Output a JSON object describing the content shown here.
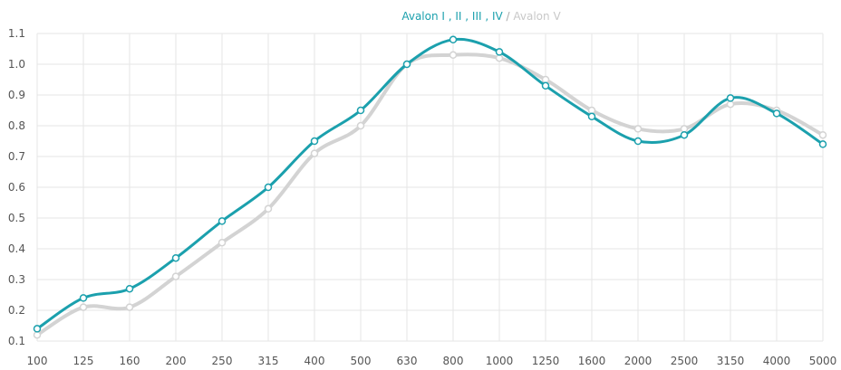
{
  "chart_data": {
    "type": "line",
    "categories": [
      "100",
      "125",
      "160",
      "200",
      "250",
      "315",
      "400",
      "500",
      "630",
      "800",
      "1000",
      "1250",
      "1600",
      "2000",
      "2500",
      "3150",
      "4000",
      "5000"
    ],
    "ylim": [
      0.1,
      1.1
    ],
    "yticks": [
      "0.1",
      "0.2",
      "0.3",
      "0.4",
      "0.5",
      "0.6",
      "0.7",
      "0.8",
      "0.9",
      "1.0",
      "1.1"
    ],
    "grid": true,
    "legend_position": "top-center",
    "legend_separator": "/",
    "series": [
      {
        "name": "Avalon I , II , III , IV",
        "color": "#1ba0ad",
        "values": [
          0.14,
          0.24,
          0.27,
          0.37,
          0.49,
          0.6,
          0.75,
          0.85,
          1.0,
          1.08,
          1.04,
          0.93,
          0.83,
          0.75,
          0.77,
          0.89,
          0.84,
          0.74
        ]
      },
      {
        "name": "Avalon V",
        "color": "#d3d3d3",
        "values": [
          0.12,
          0.21,
          0.21,
          0.31,
          0.42,
          0.53,
          0.71,
          0.8,
          1.0,
          1.03,
          1.02,
          0.95,
          0.85,
          0.79,
          0.79,
          0.87,
          0.85,
          0.77
        ]
      }
    ]
  }
}
